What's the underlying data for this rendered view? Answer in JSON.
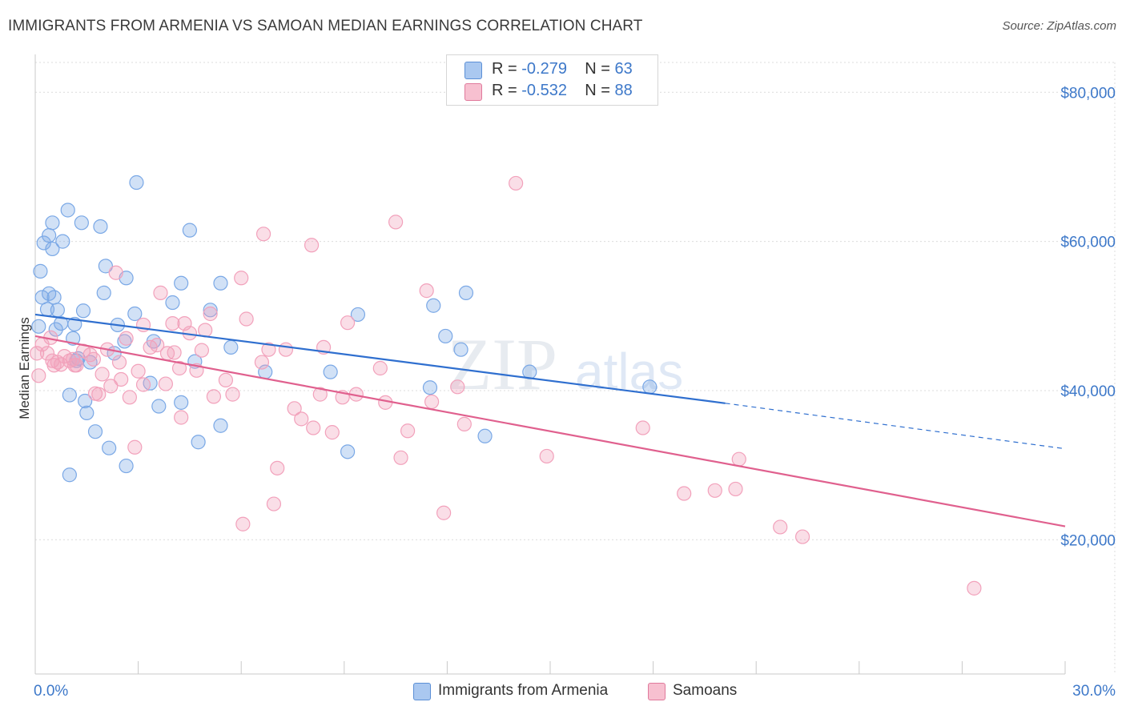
{
  "title": "IMMIGRANTS FROM ARMENIA VS SAMOAN MEDIAN EARNINGS CORRELATION CHART",
  "source": "Source: ZipAtlas.com",
  "watermark": {
    "zip": "ZIP",
    "atlas": "atlas"
  },
  "legend": {
    "rows": [
      {
        "r_label": "R =",
        "r_value": "-0.279",
        "n_label": "N =",
        "n_value": "63",
        "color": "#aac8f0",
        "border": "#5b8fd6"
      },
      {
        "r_label": "R =",
        "r_value": "-0.532",
        "n_label": "N =",
        "n_value": "88",
        "color": "#f7c0d0",
        "border": "#e07a9c"
      }
    ]
  },
  "bottom_legend": [
    {
      "label": "Immigrants from Armenia",
      "color": "#aac8f0",
      "border": "#5b8fd6"
    },
    {
      "label": "Samoans",
      "color": "#f7c0d0",
      "border": "#e07a9c"
    }
  ],
  "chart_data": {
    "type": "scatter",
    "xlabel": "",
    "ylabel": "Median Earnings",
    "x_tick_labels": [
      "0.0%",
      "30.0%"
    ],
    "y_tick_labels": [
      "$80,000",
      "$60,000",
      "$40,000",
      "$20,000"
    ],
    "y_ticks": [
      80000,
      60000,
      40000,
      20000
    ],
    "xlim": [
      0,
      30
    ],
    "ylim": [
      2000,
      84000
    ],
    "grid": true,
    "series": [
      {
        "name": "Immigrants from Armenia",
        "color": "#7aa8e6",
        "line_color": "#2f6fcf",
        "trend": {
          "x0": 0,
          "y0": 50200,
          "x1": 20.1,
          "y1": 38300,
          "x_dash_end": 30,
          "y_dash_end": 32200
        },
        "points": [
          [
            0.1,
            48.6
          ],
          [
            0.15,
            56.0
          ],
          [
            0.2,
            52.5
          ],
          [
            0.25,
            59.8
          ],
          [
            0.35,
            50.9
          ],
          [
            0.4,
            53.0
          ],
          [
            0.4,
            60.8
          ],
          [
            0.5,
            62.5
          ],
          [
            0.5,
            59.0
          ],
          [
            0.55,
            52.5
          ],
          [
            0.6,
            48.2
          ],
          [
            0.65,
            50.8
          ],
          [
            0.75,
            49.0
          ],
          [
            0.8,
            60.0
          ],
          [
            0.95,
            64.2
          ],
          [
            1.0,
            39.4
          ],
          [
            1.0,
            28.7
          ],
          [
            1.1,
            47.0
          ],
          [
            1.15,
            48.9
          ],
          [
            1.25,
            44.3
          ],
          [
            1.35,
            62.5
          ],
          [
            1.4,
            50.7
          ],
          [
            1.45,
            38.6
          ],
          [
            1.5,
            37.0
          ],
          [
            1.6,
            43.8
          ],
          [
            1.75,
            34.5
          ],
          [
            1.9,
            62.0
          ],
          [
            2.0,
            53.1
          ],
          [
            2.05,
            56.7
          ],
          [
            2.15,
            32.3
          ],
          [
            2.3,
            45.0
          ],
          [
            2.4,
            48.8
          ],
          [
            2.6,
            46.6
          ],
          [
            2.65,
            55.1
          ],
          [
            2.65,
            29.9
          ],
          [
            2.9,
            50.3
          ],
          [
            2.95,
            67.9
          ],
          [
            3.35,
            41.0
          ],
          [
            3.45,
            46.6
          ],
          [
            3.6,
            37.9
          ],
          [
            4.0,
            51.8
          ],
          [
            4.25,
            54.4
          ],
          [
            4.25,
            38.4
          ],
          [
            4.5,
            61.5
          ],
          [
            4.65,
            43.9
          ],
          [
            4.75,
            33.1
          ],
          [
            5.1,
            50.8
          ],
          [
            5.4,
            35.3
          ],
          [
            5.4,
            54.4
          ],
          [
            5.7,
            45.8
          ],
          [
            6.7,
            42.5
          ],
          [
            8.6,
            42.5
          ],
          [
            9.4,
            50.2
          ],
          [
            11.5,
            40.4
          ],
          [
            11.6,
            51.4
          ],
          [
            11.95,
            47.3
          ],
          [
            12.4,
            45.5
          ],
          [
            12.55,
            53.1
          ],
          [
            13.1,
            33.9
          ],
          [
            14.4,
            42.5
          ],
          [
            17.9,
            40.5
          ],
          [
            9.1,
            31.8
          ],
          [
            1.2,
            44.0
          ]
        ]
      },
      {
        "name": "Samoans",
        "color": "#f2a1bb",
        "line_color": "#e0608e",
        "trend": {
          "x0": 0,
          "y0": 47300,
          "x1": 30,
          "y1": 21800
        },
        "points": [
          [
            0.05,
            45.0
          ],
          [
            0.1,
            42.0
          ],
          [
            0.2,
            46.2
          ],
          [
            0.35,
            45.0
          ],
          [
            0.45,
            47.1
          ],
          [
            0.5,
            44.0
          ],
          [
            0.55,
            43.4
          ],
          [
            0.65,
            43.8
          ],
          [
            0.75,
            43.5
          ],
          [
            0.85,
            44.6
          ],
          [
            1.0,
            44.0
          ],
          [
            1.1,
            44.2
          ],
          [
            1.15,
            43.4
          ],
          [
            1.2,
            43.4
          ],
          [
            1.4,
            45.3
          ],
          [
            1.6,
            44.8
          ],
          [
            1.7,
            44.2
          ],
          [
            1.75,
            39.6
          ],
          [
            1.85,
            39.5
          ],
          [
            1.95,
            42.2
          ],
          [
            2.1,
            45.5
          ],
          [
            2.2,
            40.6
          ],
          [
            2.35,
            55.8
          ],
          [
            2.45,
            43.8
          ],
          [
            2.5,
            41.5
          ],
          [
            2.65,
            47.0
          ],
          [
            2.75,
            39.1
          ],
          [
            2.9,
            32.4
          ],
          [
            3.0,
            42.6
          ],
          [
            3.15,
            40.8
          ],
          [
            3.15,
            48.8
          ],
          [
            3.35,
            45.8
          ],
          [
            3.55,
            46.1
          ],
          [
            3.65,
            53.1
          ],
          [
            3.8,
            40.9
          ],
          [
            3.85,
            45.0
          ],
          [
            4.0,
            49.0
          ],
          [
            4.05,
            45.1
          ],
          [
            4.2,
            43.0
          ],
          [
            4.25,
            36.4
          ],
          [
            4.35,
            49.0
          ],
          [
            4.5,
            47.7
          ],
          [
            4.7,
            42.7
          ],
          [
            4.85,
            45.4
          ],
          [
            4.95,
            48.1
          ],
          [
            5.1,
            50.3
          ],
          [
            5.2,
            39.2
          ],
          [
            5.55,
            41.4
          ],
          [
            5.75,
            39.5
          ],
          [
            6.0,
            55.1
          ],
          [
            6.05,
            22.1
          ],
          [
            6.15,
            49.6
          ],
          [
            6.6,
            43.8
          ],
          [
            6.65,
            61.0
          ],
          [
            6.8,
            45.5
          ],
          [
            6.95,
            24.8
          ],
          [
            7.05,
            29.6
          ],
          [
            7.3,
            45.5
          ],
          [
            7.55,
            37.6
          ],
          [
            7.75,
            36.2
          ],
          [
            8.05,
            59.5
          ],
          [
            8.1,
            35.0
          ],
          [
            8.3,
            39.5
          ],
          [
            8.4,
            45.8
          ],
          [
            8.65,
            34.4
          ],
          [
            8.95,
            39.1
          ],
          [
            9.1,
            49.1
          ],
          [
            9.35,
            39.5
          ],
          [
            10.05,
            43.0
          ],
          [
            10.2,
            38.4
          ],
          [
            10.5,
            62.6
          ],
          [
            10.65,
            31.0
          ],
          [
            10.85,
            34.6
          ],
          [
            11.4,
            53.4
          ],
          [
            11.55,
            38.5
          ],
          [
            11.9,
            23.6
          ],
          [
            12.3,
            40.5
          ],
          [
            12.5,
            35.5
          ],
          [
            14.0,
            67.8
          ],
          [
            14.9,
            31.2
          ],
          [
            17.7,
            35.0
          ],
          [
            18.9,
            26.2
          ],
          [
            19.8,
            26.6
          ],
          [
            20.4,
            26.8
          ],
          [
            20.5,
            30.8
          ],
          [
            21.7,
            21.7
          ],
          [
            22.35,
            20.4
          ],
          [
            27.35,
            13.5
          ]
        ]
      }
    ]
  }
}
